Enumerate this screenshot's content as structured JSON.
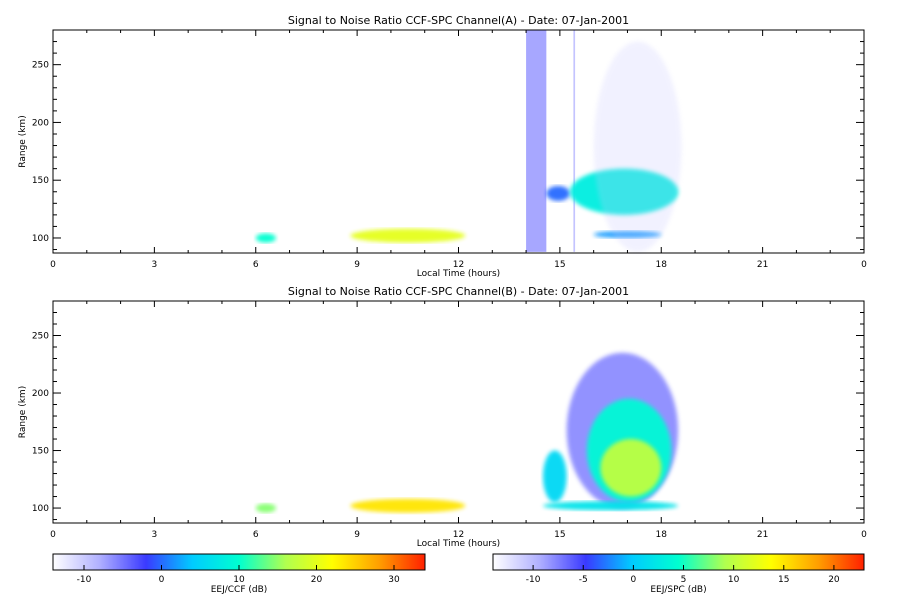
{
  "chart_data": [
    {
      "type": "heatmap",
      "title": "Signal to Noise Ratio CCF-SPC Channel(A) - Date: 07-Jan-2001",
      "xlabel": "Local Time (hours)",
      "ylabel": "Range (km)",
      "xlim": [
        0,
        24
      ],
      "ylim": [
        87,
        280
      ],
      "xticks": [
        "0",
        "3",
        "6",
        "9",
        "12",
        "15",
        "18",
        "21",
        "0"
      ],
      "yticks": [
        "100",
        "150",
        "200",
        "250"
      ],
      "colorbar": "EEJ/CCF (dB)",
      "features": [
        {
          "t0": 14.0,
          "t1": 14.6,
          "r0": 88,
          "r1": 280,
          "snr": -6,
          "kind": "stripe"
        },
        {
          "t0": 15.4,
          "t1": 15.45,
          "r0": 88,
          "r1": 280,
          "snr": -8,
          "kind": "stripe"
        },
        {
          "t0": 6.0,
          "t1": 6.6,
          "r0": 96,
          "r1": 104,
          "snr": 10
        },
        {
          "t0": 8.8,
          "t1": 12.2,
          "r0": 96,
          "r1": 108,
          "snr": 20
        },
        {
          "t0": 14.6,
          "t1": 15.3,
          "r0": 132,
          "r1": 145,
          "snr": 0
        },
        {
          "t0": 15.3,
          "t1": 18.5,
          "r0": 120,
          "r1": 160,
          "snr": 8
        },
        {
          "t0": 16.0,
          "t1": 18.0,
          "r0": 100,
          "r1": 106,
          "snr": 2
        },
        {
          "t0": 16.0,
          "t1": 18.6,
          "r0": 88,
          "r1": 270,
          "snr": -10,
          "kind": "faint"
        }
      ]
    },
    {
      "type": "heatmap",
      "title": "Signal to Noise Ratio CCF-SPC Channel(B) - Date: 07-Jan-2001",
      "xlabel": "Local Time (hours)",
      "ylabel": "Range (km)",
      "xlim": [
        0,
        24
      ],
      "ylim": [
        87,
        280
      ],
      "xticks": [
        "0",
        "3",
        "6",
        "9",
        "12",
        "15",
        "18",
        "21",
        "0"
      ],
      "yticks": [
        "100",
        "150",
        "200",
        "250"
      ],
      "colorbar": "EEJ/SPC (dB)",
      "features": [
        {
          "t0": 6.0,
          "t1": 6.6,
          "r0": 96,
          "r1": 104,
          "snr": 8
        },
        {
          "t0": 8.8,
          "t1": 12.2,
          "r0": 96,
          "r1": 108,
          "snr": 15
        },
        {
          "t0": 14.5,
          "t1": 15.2,
          "r0": 105,
          "r1": 150,
          "snr": 1
        },
        {
          "t0": 15.2,
          "t1": 18.5,
          "r0": 100,
          "r1": 235,
          "snr": -8
        },
        {
          "t0": 15.8,
          "t1": 18.3,
          "r0": 105,
          "r1": 195,
          "snr": 4
        },
        {
          "t0": 16.2,
          "t1": 18.0,
          "r0": 110,
          "r1": 160,
          "snr": 10
        },
        {
          "t0": 14.5,
          "t1": 18.5,
          "r0": 98,
          "r1": 106,
          "snr": 2
        }
      ]
    }
  ],
  "colorbars": [
    {
      "label": "EEJ/CCF (dB)",
      "ticks": [
        "-10",
        "0",
        "10",
        "20",
        "30"
      ],
      "values": [
        -10,
        0,
        10,
        20,
        30
      ],
      "range": [
        -14,
        34
      ]
    },
    {
      "label": "EEJ/SPC (dB)",
      "ticks": [
        "-10",
        "-5",
        "0",
        "5",
        "10",
        "15",
        "20"
      ],
      "values": [
        -10,
        -5,
        0,
        5,
        10,
        15,
        20
      ],
      "range": [
        -14,
        23
      ]
    }
  ],
  "colormap": [
    "#ffffff",
    "#b0b0ff",
    "#3a3aff",
    "#00ccff",
    "#00ffd0",
    "#b0ff50",
    "#ffff00",
    "#ffa000",
    "#ff2000"
  ]
}
